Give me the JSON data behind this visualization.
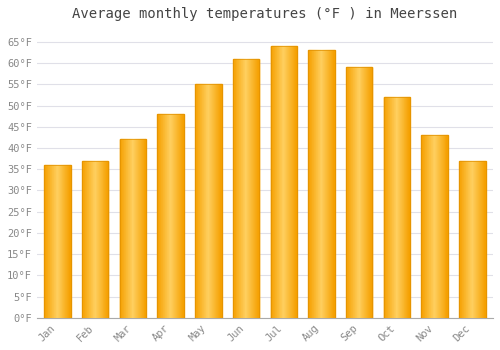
{
  "title": "Average monthly temperatures (°F ) in Meerssen",
  "months": [
    "Jan",
    "Feb",
    "Mar",
    "Apr",
    "May",
    "Jun",
    "Jul",
    "Aug",
    "Sep",
    "Oct",
    "Nov",
    "Dec"
  ],
  "values": [
    36,
    37,
    42,
    48,
    55,
    61,
    64,
    63,
    59,
    52,
    43,
    37
  ],
  "bar_color_center": "#FFD060",
  "bar_color_edge": "#F5A000",
  "background_color": "#FFFFFF",
  "plot_bg_color": "#FFFFFF",
  "grid_color": "#E0E0E8",
  "tick_label_color": "#888888",
  "title_color": "#444444",
  "ylim": [
    0,
    68
  ],
  "yticks": [
    0,
    5,
    10,
    15,
    20,
    25,
    30,
    35,
    40,
    45,
    50,
    55,
    60,
    65
  ],
  "ytick_labels": [
    "0°F",
    "5°F",
    "10°F",
    "15°F",
    "20°F",
    "25°F",
    "30°F",
    "35°F",
    "40°F",
    "45°F",
    "50°F",
    "55°F",
    "60°F",
    "65°F"
  ],
  "title_fontsize": 10,
  "tick_fontsize": 7.5,
  "font_family": "monospace",
  "bar_width": 0.7
}
